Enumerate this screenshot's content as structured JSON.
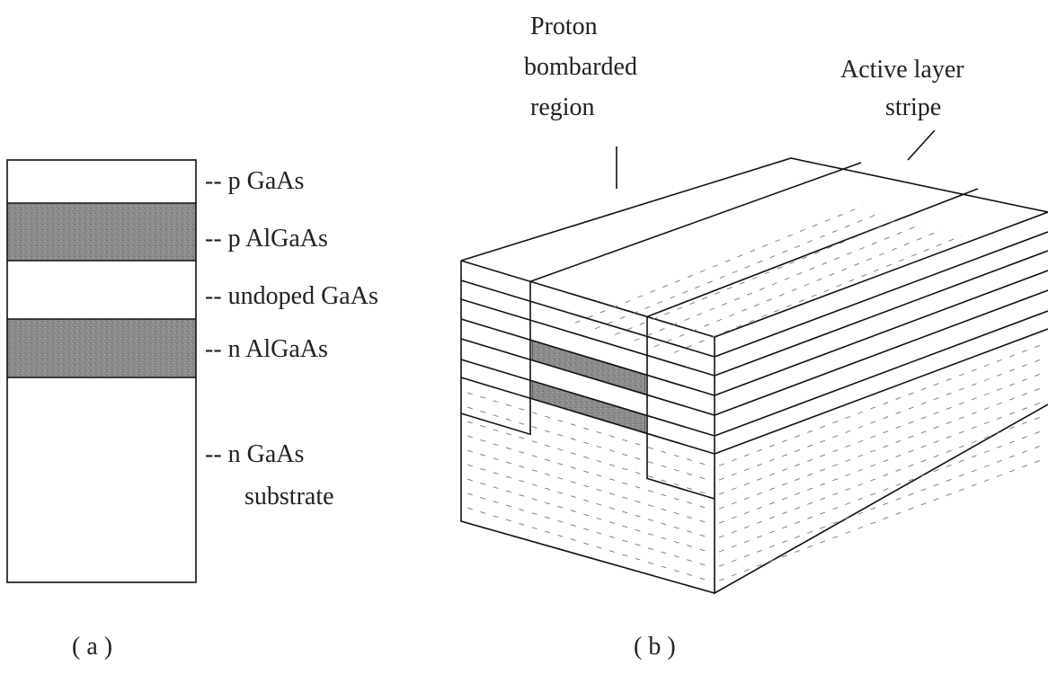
{
  "panel_a": {
    "layers": [
      {
        "label_lines": [
          "-- p GaAs"
        ]
      },
      {
        "label_lines": [
          "-- p AlGaAs"
        ]
      },
      {
        "label_lines": [
          "-- undoped GaAs"
        ]
      },
      {
        "label_lines": [
          "-- n AlGaAs"
        ]
      },
      {
        "label_lines": [
          "-- n GaAs",
          "substrate"
        ]
      }
    ],
    "caption": "( a )"
  },
  "panel_b": {
    "proton_label_lines": [
      "Proton",
      "bombarded",
      "region"
    ],
    "stripe_label_lines": [
      "Active layer",
      "stripe"
    ],
    "caption": "( b )"
  }
}
